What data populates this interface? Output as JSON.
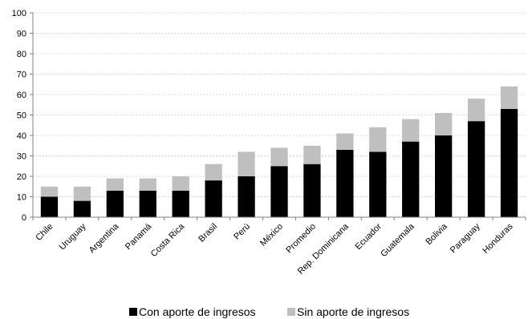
{
  "chart_data": {
    "type": "bar",
    "stacked": true,
    "categories": [
      "Chile",
      "Uruguay",
      "Argentina",
      "Panamá",
      "Costa Rica",
      "Brasil",
      "Perú",
      "México",
      "Promedio",
      "Rep. Dominicana",
      "Ecuador",
      "Guatemala",
      "Bolivia",
      "Paraguay",
      "Honduras"
    ],
    "series": [
      {
        "name": "Con aporte de ingresos",
        "color": "#000000",
        "values": [
          10,
          8,
          13,
          13,
          13,
          18,
          20,
          25,
          26,
          33,
          32,
          37,
          40,
          47,
          53
        ]
      },
      {
        "name": "Sin aporte de ingresos",
        "color": "#bfbfbf",
        "values": [
          5,
          7,
          6,
          6,
          7,
          8,
          12,
          9,
          9,
          8,
          12,
          11,
          11,
          11,
          11
        ]
      }
    ],
    "ylim": [
      0,
      100
    ],
    "yticks": [
      0,
      10,
      20,
      30,
      40,
      50,
      60,
      70,
      80,
      90,
      100
    ],
    "grid": true,
    "legend_position": "bottom",
    "title": "",
    "xlabel": "",
    "ylabel": ""
  }
}
